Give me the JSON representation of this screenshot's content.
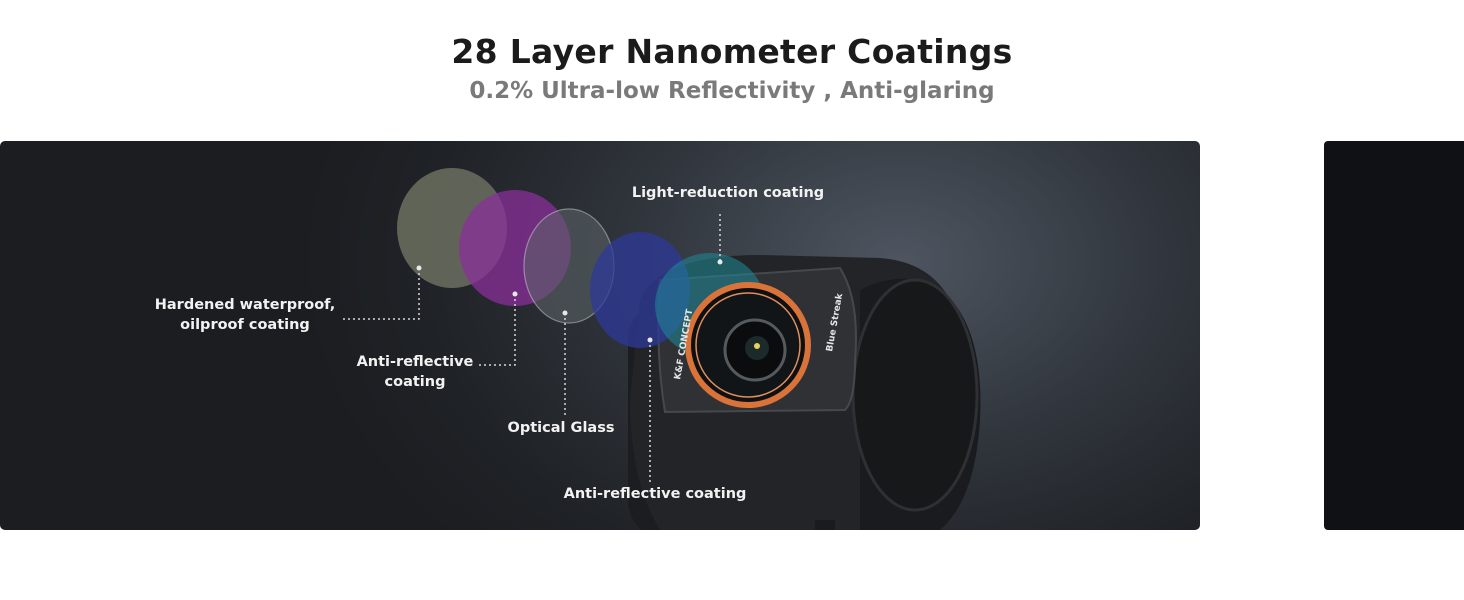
{
  "header": {
    "title": "28 Layer Nanometer Coatings",
    "subtitle": "0.2% Ultra-low Reflectivity , Anti-glaring"
  },
  "labels": {
    "hardened_line1": "Hardened waterproof,",
    "hardened_line2": "oilproof coating",
    "anti_reflective_1_line1": "Anti-reflective",
    "anti_reflective_1_line2": "coating",
    "optical_glass": "Optical Glass",
    "light_reduction": "Light-reduction coating",
    "anti_reflective_2": "Anti-reflective coating"
  },
  "product": {
    "brand": "K&F CONCEPT",
    "model": "Blue Streak"
  },
  "colors": {
    "hardened_layer": "#6b7060",
    "anti_reflective_layer": "#8a2f9a",
    "glass_layer": "#5d6568",
    "blue_layer": "#2d3a9a",
    "teal_layer": "#1e8a98",
    "ring": "#d9733a"
  }
}
